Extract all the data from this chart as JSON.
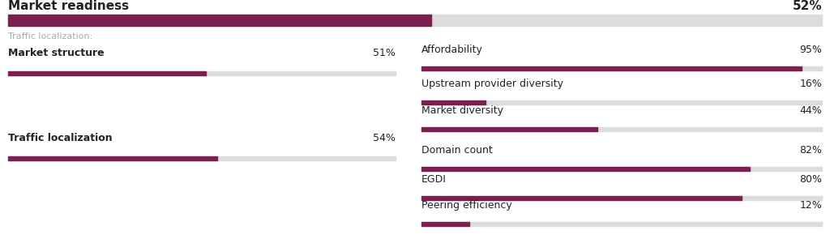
{
  "title": "Market readiness",
  "title_score": "52%",
  "title_value": 52,
  "bar_color": "#7B1F52",
  "bg_color": "#DCDCDC",
  "background": "#FFFFFF",
  "subtitle": "Traffic localization:",
  "subtitle_color": "#AAAAAA",
  "left_metrics": [
    {
      "label": "Market structure",
      "value": 51
    },
    {
      "label": "Traffic localization",
      "value": 54
    }
  ],
  "right_metrics": [
    {
      "label": "Affordability",
      "value": 95
    },
    {
      "label": "Upstream provider diversity",
      "value": 16
    },
    {
      "label": "Market diversity",
      "value": 44
    },
    {
      "label": "Domain count",
      "value": 82
    },
    {
      "label": "EGDI",
      "value": 80
    },
    {
      "label": "Peering efficiency",
      "value": 12
    }
  ],
  "title_fontsize": 11,
  "label_fontsize": 9,
  "score_fontsize": 9,
  "subtitle_fontsize": 8
}
